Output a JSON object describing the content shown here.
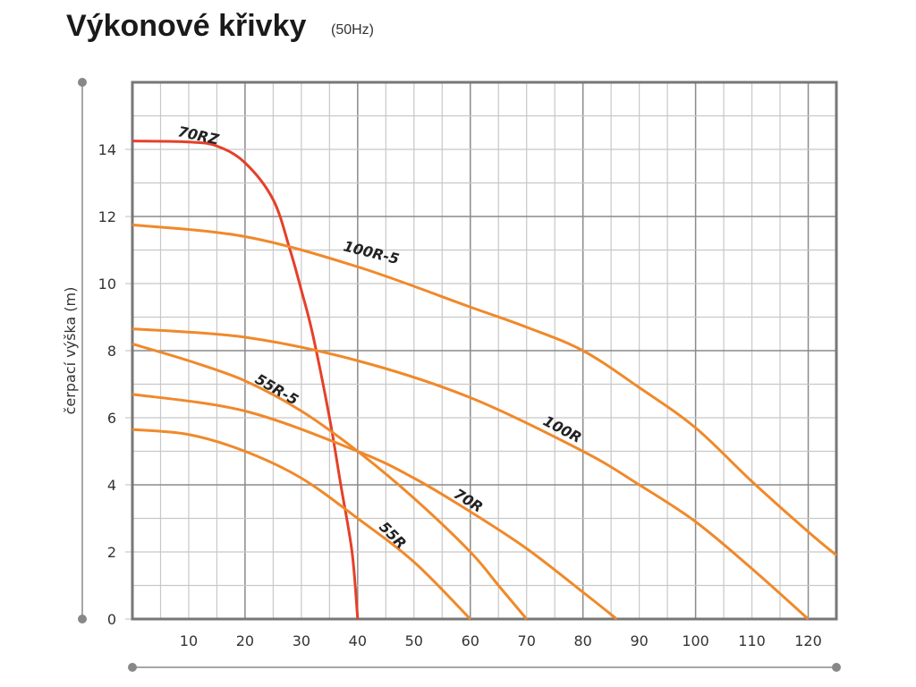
{
  "chart_data": {
    "type": "line",
    "title": "Výkonové křivky",
    "subtitle": "(50Hz)",
    "xlabel": "",
    "ylabel": "čerpací výška (m)",
    "xlim": [
      0,
      125
    ],
    "ylim": [
      0,
      16
    ],
    "xticks": [
      10,
      20,
      30,
      40,
      50,
      60,
      70,
      80,
      90,
      100,
      110,
      120
    ],
    "yticks": [
      0,
      2,
      4,
      6,
      8,
      10,
      12,
      14
    ],
    "grid": true,
    "colors": {
      "orange": "#f0892a",
      "red": "#e5402a",
      "grid_minor": "#c8c8c8",
      "grid_major": "#8a8a8a"
    },
    "series": [
      {
        "name": "70RZ",
        "color": "#e5402a",
        "x": [
          0,
          10,
          15,
          20,
          25,
          28,
          30,
          32,
          35,
          37,
          39,
          40
        ],
        "y": [
          14.25,
          14.22,
          14.1,
          13.6,
          12.5,
          11,
          9.8,
          8.5,
          6,
          4,
          2,
          0
        ]
      },
      {
        "name": "100R-5",
        "color": "#f0892a",
        "x": [
          0,
          20,
          40,
          60,
          70,
          80,
          90,
          100,
          110,
          120,
          125
        ],
        "y": [
          11.75,
          11.4,
          10.5,
          9.3,
          8.7,
          8,
          6.9,
          5.7,
          4.1,
          2.6,
          1.9
        ]
      },
      {
        "name": "100R",
        "color": "#f0892a",
        "x": [
          0,
          20,
          40,
          60,
          80,
          90,
          100,
          110,
          120
        ],
        "y": [
          8.65,
          8.4,
          7.7,
          6.6,
          5,
          4,
          2.9,
          1.5,
          0
        ]
      },
      {
        "name": "55R-5",
        "color": "#f0892a",
        "x": [
          0,
          10,
          20,
          30,
          40,
          50,
          60,
          65,
          70
        ],
        "y": [
          8.2,
          7.7,
          7.1,
          6.2,
          5,
          3.6,
          2,
          1,
          0
        ]
      },
      {
        "name": "70R",
        "color": "#f0892a",
        "x": [
          0,
          20,
          40,
          50,
          60,
          70,
          80,
          86
        ],
        "y": [
          6.7,
          6.2,
          5,
          4.2,
          3.2,
          2.1,
          0.8,
          0
        ]
      },
      {
        "name": "55R",
        "color": "#f0892a",
        "x": [
          0,
          10,
          20,
          30,
          40,
          50,
          60
        ],
        "y": [
          5.65,
          5.5,
          5,
          4.2,
          3,
          1.7,
          0
        ]
      }
    ]
  }
}
